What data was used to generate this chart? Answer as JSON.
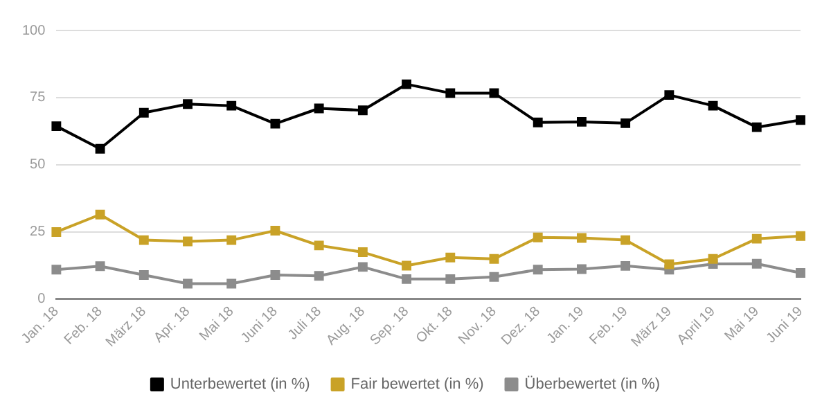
{
  "chart_data": {
    "type": "line",
    "categories": [
      "Jan. 18",
      "Feb. 18",
      "März 18",
      "Apr. 18",
      "Mai 18",
      "Juni 18",
      "Juli 18",
      "Aug. 18",
      "Sep. 18",
      "Okt. 18",
      "Nov. 18",
      "Dez. 18",
      "Jan. 19",
      "Feb. 19",
      "März 19",
      "April 19",
      "Mai 19",
      "Juni 19"
    ],
    "series": [
      {
        "name": "Unterbewertet (in %)",
        "color": "#000000",
        "values": [
          64.4,
          56,
          69.4,
          72.6,
          72,
          65.3,
          71,
          70.3,
          80,
          76.7,
          76.7,
          65.8,
          66,
          65.5,
          76,
          72,
          64,
          66.7
        ]
      },
      {
        "name": "Fair bewertet (in %)",
        "color": "#c9a227",
        "values": [
          25,
          31.5,
          22,
          21.5,
          22,
          25.5,
          20,
          17.5,
          12.5,
          15.5,
          15,
          23,
          22.8,
          22,
          13,
          15,
          22.5,
          23.5
        ]
      },
      {
        "name": "Überbewertet (in %)",
        "color": "#8c8c8c",
        "values": [
          11,
          12.3,
          9,
          5.8,
          5.8,
          9,
          8.7,
          12,
          7.5,
          7.5,
          8.3,
          11,
          11.2,
          12.4,
          11,
          13.1,
          13.2,
          9.8
        ]
      }
    ],
    "ylim": [
      0,
      100
    ],
    "yticks": [
      0,
      25,
      50,
      75,
      100
    ],
    "grid": "y",
    "legend": "bottom",
    "marker": "square",
    "line_style": "solid"
  }
}
